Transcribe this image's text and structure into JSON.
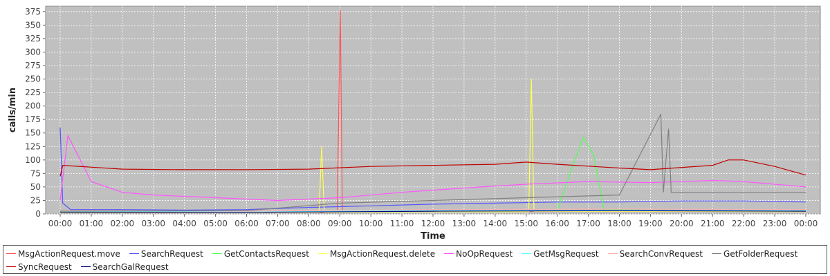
{
  "chart_data": {
    "type": "line",
    "title": "",
    "xlabel": "Time",
    "ylabel": "calls/min",
    "ylim": [
      0,
      385
    ],
    "yticks": [
      0,
      25,
      50,
      75,
      100,
      125,
      150,
      175,
      200,
      225,
      250,
      275,
      300,
      325,
      350,
      375
    ],
    "xlim": [
      "00:00",
      "24:00"
    ],
    "xticks": [
      "00:00",
      "01:00",
      "02:00",
      "03:00",
      "04:00",
      "05:00",
      "06:00",
      "07:00",
      "08:00",
      "09:00",
      "10:00",
      "11:00",
      "12:00",
      "13:00",
      "14:00",
      "15:00",
      "16:00",
      "17:00",
      "18:00",
      "19:00",
      "20:00",
      "21:00",
      "22:00",
      "23:00",
      "00:00"
    ],
    "grid": true,
    "legend_position": "bottom",
    "plot_background": "#c0c0c0",
    "series": [
      {
        "name": "MsgActionRequest.move",
        "color": "#ff5555",
        "x": [
          "00:00",
          "03:00",
          "06:00",
          "08:30",
          "08:55",
          "09:01",
          "09:05",
          "12:00",
          "15:00",
          "18:00",
          "21:00",
          "24:00"
        ],
        "y": [
          2,
          2,
          3,
          3,
          3,
          378,
          4,
          5,
          5,
          5,
          5,
          4
        ]
      },
      {
        "name": "SearchRequest",
        "color": "#5555ff",
        "x": [
          "00:00",
          "00:05",
          "00:20",
          "02:00",
          "04:00",
          "06:00",
          "08:00",
          "10:00",
          "12:00",
          "14:00",
          "16:00",
          "18:00",
          "20:00",
          "22:00",
          "24:00"
        ],
        "y": [
          160,
          20,
          8,
          8,
          7,
          8,
          12,
          15,
          18,
          20,
          22,
          22,
          24,
          24,
          22
        ]
      },
      {
        "name": "GetContactsRequest",
        "color": "#55ff55",
        "x": [
          "00:00",
          "06:00",
          "12:00",
          "16:00",
          "16:30",
          "16:50",
          "17:10",
          "17:30",
          "20:00",
          "24:00"
        ],
        "y": [
          3,
          3,
          5,
          6,
          90,
          142,
          110,
          8,
          6,
          5
        ]
      },
      {
        "name": "MsgActionRequest.delete",
        "color": "#ffff55",
        "x": [
          "00:00",
          "08:20",
          "08:25",
          "08:30",
          "12:00",
          "15:05",
          "15:10",
          "15:15",
          "20:00",
          "24:00"
        ],
        "y": [
          2,
          3,
          125,
          3,
          4,
          4,
          250,
          5,
          5,
          4
        ]
      },
      {
        "name": "NoOpRequest",
        "color": "#ff55ff",
        "x": [
          "00:00",
          "00:15",
          "01:00",
          "02:00",
          "03:00",
          "05:00",
          "07:00",
          "09:00",
          "11:00",
          "13:00",
          "15:00",
          "17:00",
          "19:00",
          "21:00",
          "22:00",
          "24:00"
        ],
        "y": [
          25,
          145,
          60,
          40,
          35,
          30,
          25,
          30,
          40,
          48,
          55,
          60,
          58,
          62,
          60,
          50
        ]
      },
      {
        "name": "GetMsgRequest",
        "color": "#55ffff",
        "x": [
          "00:00",
          "06:00",
          "12:00",
          "18:00",
          "24:00"
        ],
        "y": [
          4,
          4,
          6,
          7,
          6
        ]
      },
      {
        "name": "SearchConvRequest",
        "color": "#ffafaf",
        "x": [
          "00:00",
          "06:00",
          "12:00",
          "18:00",
          "24:00"
        ],
        "y": [
          6,
          5,
          8,
          9,
          8
        ]
      },
      {
        "name": "GetFolderRequest",
        "color": "#808080",
        "x": [
          "00:00",
          "06:00",
          "09:00",
          "12:00",
          "15:00",
          "18:00",
          "19:20",
          "19:25",
          "19:35",
          "19:40",
          "21:00",
          "24:00"
        ],
        "y": [
          5,
          6,
          20,
          25,
          30,
          35,
          185,
          40,
          158,
          40,
          40,
          40
        ]
      },
      {
        "name": "SyncRequest",
        "color": "#c00000",
        "x": [
          "00:00",
          "00:05",
          "02:00",
          "04:00",
          "06:00",
          "08:00",
          "10:00",
          "12:00",
          "14:00",
          "15:00",
          "16:00",
          "18:00",
          "19:00",
          "21:00",
          "21:30",
          "22:00",
          "23:00",
          "24:00"
        ],
        "y": [
          70,
          90,
          83,
          82,
          82,
          83,
          88,
          90,
          92,
          96,
          92,
          85,
          82,
          90,
          100,
          100,
          88,
          72
        ]
      },
      {
        "name": "SearchGalRequest",
        "color": "#000080",
        "x": [
          "00:00",
          "06:00",
          "12:00",
          "18:00",
          "24:00"
        ],
        "y": [
          3,
          3,
          5,
          6,
          5
        ]
      }
    ]
  }
}
